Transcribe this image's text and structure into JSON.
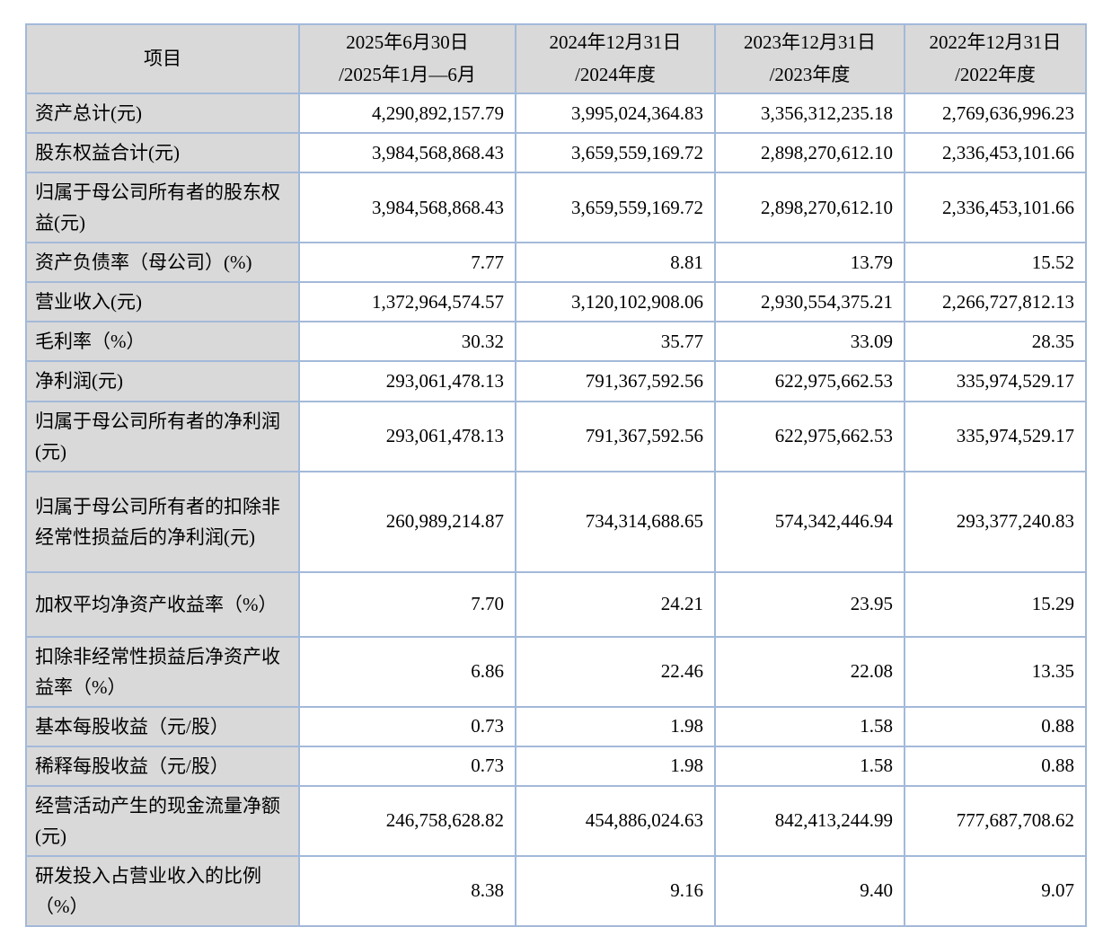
{
  "table": {
    "colors": {
      "border": "#a3b9d9",
      "header_bg": "#d9d9d9",
      "label_bg": "#d9d9d9",
      "text": "#000000"
    },
    "header": {
      "item_label": "项目",
      "periods": [
        {
          "line1": "2025年6月30日",
          "line2": "/2025年1月—6月"
        },
        {
          "line1": "2024年12月31日",
          "line2": "/2024年度"
        },
        {
          "line1": "2023年12月31日",
          "line2": "/2023年度"
        },
        {
          "line1": "2022年12月31日",
          "line2": "/2022年度"
        }
      ]
    },
    "rows": [
      {
        "label": "资产总计(元)",
        "size": "s",
        "values": [
          "4,290,892,157.79",
          "3,995,024,364.83",
          "3,356,312,235.18",
          "2,769,636,996.23"
        ]
      },
      {
        "label": "股东权益合计(元)",
        "size": "s",
        "values": [
          "3,984,568,868.43",
          "3,659,559,169.72",
          "2,898,270,612.10",
          "2,336,453,101.66"
        ]
      },
      {
        "label": "归属于母公司所有者的股东权益(元)",
        "size": "d",
        "values": [
          "3,984,568,868.43",
          "3,659,559,169.72",
          "2,898,270,612.10",
          "2,336,453,101.66"
        ]
      },
      {
        "label": "资产负债率（母公司）(%)",
        "size": "s",
        "values": [
          "7.77",
          "8.81",
          "13.79",
          "15.52"
        ]
      },
      {
        "label": "营业收入(元)",
        "size": "s",
        "values": [
          "1,372,964,574.57",
          "3,120,102,908.06",
          "2,930,554,375.21",
          "2,266,727,812.13"
        ]
      },
      {
        "label": "毛利率（%）",
        "size": "s",
        "values": [
          "30.32",
          "35.77",
          "33.09",
          "28.35"
        ]
      },
      {
        "label": "净利润(元)",
        "size": "s",
        "values": [
          "293,061,478.13",
          "791,367,592.56",
          "622,975,662.53",
          "335,974,529.17"
        ]
      },
      {
        "label": "归属于母公司所有者的净利润(元)",
        "size": "d",
        "values": [
          "293,061,478.13",
          "791,367,592.56",
          "622,975,662.53",
          "335,974,529.17"
        ]
      },
      {
        "label": "归属于母公司所有者的扣除非经常性损益后的净利润(元)",
        "size": "t",
        "values": [
          "260,989,214.87",
          "734,314,688.65",
          "574,342,446.94",
          "293,377,240.83"
        ]
      },
      {
        "label": "加权平均净资产收益率（%）",
        "size": "d",
        "values": [
          "7.70",
          "24.21",
          "23.95",
          "15.29"
        ]
      },
      {
        "label": "扣除非经常性损益后净资产收益率（%）",
        "size": "d",
        "values": [
          "6.86",
          "22.46",
          "22.08",
          "13.35"
        ]
      },
      {
        "label": "基本每股收益（元/股）",
        "size": "s",
        "values": [
          "0.73",
          "1.98",
          "1.58",
          "0.88"
        ]
      },
      {
        "label": "稀释每股收益（元/股）",
        "size": "s",
        "values": [
          "0.73",
          "1.98",
          "1.58",
          "0.88"
        ]
      },
      {
        "label": "经营活动产生的现金流量净额(元)",
        "size": "d",
        "values": [
          "246,758,628.82",
          "454,886,024.63",
          "842,413,244.99",
          "777,687,708.62"
        ]
      },
      {
        "label": "研发投入占营业收入的比例（%）",
        "size": "d",
        "values": [
          "8.38",
          "9.16",
          "9.40",
          "9.07"
        ]
      }
    ]
  }
}
